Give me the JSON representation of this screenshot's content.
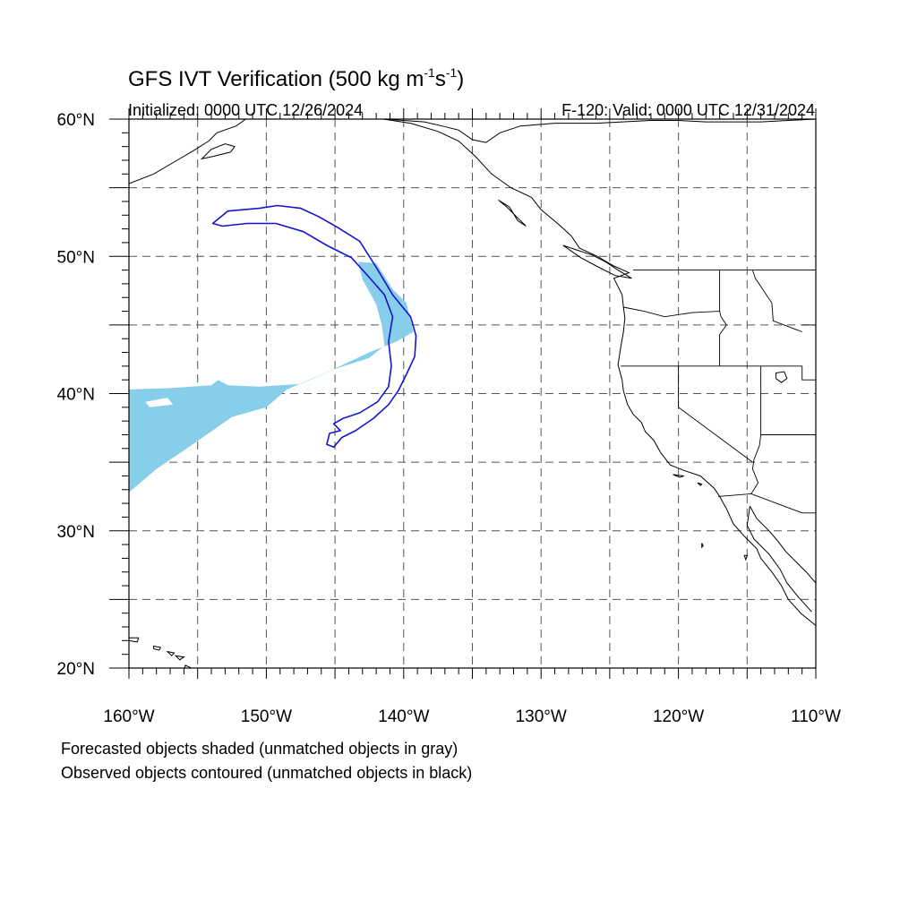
{
  "title": {
    "prefix": "GFS IVT Verification (500 kg m",
    "sup1": "-1",
    "mid": "s",
    "sup2": "-1",
    "suffix": ")"
  },
  "initialized": "Initialized: 0000 UTC 12/26/2024",
  "valid": "F-120: Valid: 0000 UTC 12/31/2024",
  "axes": {
    "lon_range": [
      -160,
      -110
    ],
    "lat_range": [
      20,
      60
    ],
    "x_ticks": [
      {
        "lon": -160,
        "label": "160°W"
      },
      {
        "lon": -150,
        "label": "150°W"
      },
      {
        "lon": -140,
        "label": "140°W"
      },
      {
        "lon": -130,
        "label": "130°W"
      },
      {
        "lon": -120,
        "label": "120°W"
      },
      {
        "lon": -110,
        "label": "110°W"
      }
    ],
    "y_ticks": [
      {
        "lat": 20,
        "label": "20°N"
      },
      {
        "lat": 30,
        "label": "30°N"
      },
      {
        "lat": 40,
        "label": "40°N"
      },
      {
        "lat": 50,
        "label": "50°N"
      },
      {
        "lat": 60,
        "label": "60°N"
      }
    ],
    "grid_lons": [
      -155,
      -150,
      -145,
      -140,
      -135,
      -130,
      -125,
      -120,
      -115
    ],
    "grid_lats": [
      25,
      30,
      35,
      40,
      45,
      50,
      55
    ],
    "grid": true
  },
  "legend_lines": [
    "Forecasted objects shaded (unmatched objects in gray)",
    "Observed objects contoured (unmatched objects in black)"
  ],
  "colors": {
    "forecast_fill": "#87ceeb",
    "observed_contour": "#1414d2",
    "coast": "#000000",
    "grid": "#555555"
  },
  "forecast_object": {
    "name": "Forecasted objects",
    "polygon": [
      [
        -160,
        40.3
      ],
      [
        -157,
        40.4
      ],
      [
        -154,
        40.6
      ],
      [
        -153.5,
        41
      ],
      [
        -152.8,
        40.6
      ],
      [
        -150.5,
        40.5
      ],
      [
        -147.5,
        40.7
      ],
      [
        -145,
        41.8
      ],
      [
        -142.5,
        42.6
      ],
      [
        -141.4,
        43.5
      ],
      [
        -141.6,
        45
      ],
      [
        -142,
        46.5
      ],
      [
        -143,
        48.3
      ],
      [
        -143.3,
        49.6
      ],
      [
        -142,
        49.5
      ],
      [
        -140.8,
        47.6
      ],
      [
        -139.8,
        46.6
      ],
      [
        -139.3,
        44.5
      ],
      [
        -140.5,
        43.8
      ],
      [
        -142.5,
        43
      ],
      [
        -145.5,
        41.6
      ],
      [
        -148.5,
        40.3
      ],
      [
        -150,
        39
      ],
      [
        -152.5,
        38.3
      ],
      [
        -155.5,
        36.2
      ],
      [
        -158,
        34.5
      ],
      [
        -160,
        32.8
      ]
    ],
    "notch": [
      [
        -158.8,
        39.4
      ],
      [
        -157.2,
        39.7
      ],
      [
        -156.8,
        39.2
      ],
      [
        -158.5,
        39.0
      ]
    ]
  },
  "observed_object": {
    "name": "Observed objects",
    "polygon": [
      [
        -153.9,
        52.4
      ],
      [
        -152.8,
        53.3
      ],
      [
        -150.5,
        53.5
      ],
      [
        -149.2,
        53.7
      ],
      [
        -147.5,
        53.5
      ],
      [
        -146.2,
        52.9
      ],
      [
        -144.8,
        52.1
      ],
      [
        -143.2,
        51.1
      ],
      [
        -142,
        49.2
      ],
      [
        -140.8,
        47.2
      ],
      [
        -139.5,
        45.6
      ],
      [
        -139.1,
        44.2
      ],
      [
        -139.2,
        42.7
      ],
      [
        -139.8,
        41.4
      ],
      [
        -140.4,
        40.2
      ],
      [
        -141.1,
        39.2
      ],
      [
        -142.2,
        38.2
      ],
      [
        -143.5,
        37.3
      ],
      [
        -144.5,
        36.8
      ],
      [
        -145.1,
        36.1
      ],
      [
        -145.6,
        36.3
      ],
      [
        -145.4,
        37.1
      ],
      [
        -144.6,
        37.3
      ],
      [
        -145.1,
        37.8
      ],
      [
        -144.4,
        38.2
      ],
      [
        -143.2,
        38.6
      ],
      [
        -141.9,
        39.4
      ],
      [
        -141.1,
        40.5
      ],
      [
        -140.9,
        42
      ],
      [
        -141.1,
        43.8
      ],
      [
        -140.8,
        45.6
      ],
      [
        -141.4,
        47.2
      ],
      [
        -142.8,
        48.8
      ],
      [
        -143.8,
        49.9
      ],
      [
        -145.6,
        50.8
      ],
      [
        -147.3,
        51.8
      ],
      [
        -149.3,
        52.4
      ],
      [
        -151.4,
        52.4
      ],
      [
        -153.2,
        52.2
      ]
    ]
  },
  "coastlines": {
    "north_america": [
      [
        -110,
        60
      ],
      [
        -112,
        59.9
      ],
      [
        -114,
        59.8
      ],
      [
        -116,
        59.8
      ],
      [
        -118,
        59.8
      ],
      [
        -120,
        59.9
      ],
      [
        -122,
        59.9
      ],
      [
        -126,
        59.7
      ],
      [
        -129,
        59.7
      ],
      [
        -131.5,
        59.5
      ],
      [
        -133,
        59
      ],
      [
        -134,
        58.3
      ],
      [
        -135,
        58.5
      ],
      [
        -136,
        59.2
      ],
      [
        -137.2,
        59.5
      ],
      [
        -138.5,
        59.8
      ],
      [
        -140,
        59.9
      ],
      [
        -141.5,
        60
      ]
    ],
    "bc_coast": [
      [
        -141.5,
        60
      ],
      [
        -139.5,
        59.7
      ],
      [
        -137.5,
        59.1
      ],
      [
        -136,
        58.4
      ],
      [
        -134.8,
        57.3
      ],
      [
        -133.6,
        56
      ],
      [
        -132.2,
        55
      ],
      [
        -130.7,
        54.3
      ],
      [
        -130,
        53.4
      ],
      [
        -128.8,
        52.4
      ],
      [
        -127.8,
        51.5
      ],
      [
        -127.2,
        50.6
      ],
      [
        -125.9,
        50
      ],
      [
        -124.7,
        49.3
      ],
      [
        -123.6,
        48.8
      ],
      [
        -124.7,
        48.4
      ],
      [
        -124.1,
        47.2
      ],
      [
        -124,
        46.3
      ],
      [
        -123.9,
        45.5
      ],
      [
        -124,
        44.5
      ],
      [
        -124.2,
        43.4
      ],
      [
        -124.4,
        42.1
      ],
      [
        -124.1,
        41
      ],
      [
        -124,
        40.2
      ],
      [
        -123.7,
        39.2
      ],
      [
        -123.3,
        38.5
      ],
      [
        -122.7,
        37.9
      ],
      [
        -122.4,
        37.2
      ],
      [
        -121.8,
        36.6
      ],
      [
        -121.3,
        35.7
      ],
      [
        -120.6,
        34.8
      ],
      [
        -119.6,
        34.4
      ],
      [
        -118.4,
        34
      ],
      [
        -117.4,
        33.1
      ],
      [
        -117,
        32.5
      ],
      [
        -116.5,
        31.6
      ],
      [
        -116,
        30.5
      ],
      [
        -115.2,
        29.6
      ],
      [
        -114.3,
        28.7
      ],
      [
        -114,
        28
      ],
      [
        -113.2,
        27
      ],
      [
        -112.5,
        26
      ],
      [
        -112,
        25
      ],
      [
        -111.1,
        24
      ],
      [
        -110,
        23.1
      ]
    ],
    "gulf_coast": [
      [
        -114.8,
        31.8
      ],
      [
        -114.3,
        30.9
      ],
      [
        -113.4,
        30
      ],
      [
        -112.8,
        29.3
      ],
      [
        -112.2,
        28.5
      ],
      [
        -111.3,
        27.6
      ],
      [
        -110.6,
        26.9
      ],
      [
        -110,
        26.2
      ]
    ],
    "baja_inner": [
      [
        -114.8,
        31.8
      ],
      [
        -115,
        30.4
      ],
      [
        -114.5,
        29.4
      ],
      [
        -113.4,
        28.3
      ],
      [
        -112.6,
        27.2
      ],
      [
        -112.1,
        26.2
      ],
      [
        -111.3,
        25.2
      ],
      [
        -110.3,
        24.1
      ]
    ],
    "vancouver_island": [
      [
        -128.4,
        50.8
      ],
      [
        -127.5,
        50.5
      ],
      [
        -126.3,
        50.1
      ],
      [
        -125.3,
        49.6
      ],
      [
        -124.4,
        49
      ],
      [
        -123.4,
        48.4
      ],
      [
        -124.6,
        48.6
      ],
      [
        -125.8,
        49.2
      ],
      [
        -127.1,
        49.9
      ],
      [
        -128.4,
        50.8
      ]
    ],
    "haida_gwaii": [
      [
        -133.1,
        54.1
      ],
      [
        -132.3,
        53.6
      ],
      [
        -131.7,
        52.6
      ],
      [
        -131.1,
        52.2
      ],
      [
        -131.8,
        52.9
      ],
      [
        -132.5,
        53.6
      ],
      [
        -133.1,
        54.1
      ]
    ],
    "alaska_arc": [
      [
        -160,
        55.3
      ],
      [
        -158.2,
        56
      ],
      [
        -156.5,
        57
      ],
      [
        -155.3,
        57.7
      ],
      [
        -154.2,
        58.4
      ],
      [
        -153.6,
        59
      ],
      [
        -152.2,
        59.5
      ],
      [
        -151.5,
        60
      ]
    ],
    "kodiak": [
      [
        -154.7,
        57.1
      ],
      [
        -153.8,
        57.3
      ],
      [
        -152.6,
        57.6
      ],
      [
        -152.3,
        58
      ],
      [
        -153,
        58.2
      ],
      [
        -154,
        57.8
      ],
      [
        -154.7,
        57.1
      ]
    ],
    "hawaii": [
      [
        [
          -160.1,
          22.2
        ],
        [
          -159.3,
          22.2
        ],
        [
          -159.4,
          21.9
        ],
        [
          -160,
          22
        ]
      ],
      [
        [
          -158.2,
          21.6
        ],
        [
          -157.7,
          21.5
        ],
        [
          -157.8,
          21.3
        ],
        [
          -158.2,
          21.4
        ]
      ],
      [
        [
          -157.2,
          21.2
        ],
        [
          -156.7,
          21.1
        ],
        [
          -156.9,
          20.9
        ]
      ],
      [
        [
          -156.6,
          20.9
        ],
        [
          -156,
          20.8
        ],
        [
          -156.3,
          20.6
        ]
      ],
      [
        [
          -155.9,
          20.2
        ],
        [
          -155,
          19.8
        ],
        [
          -155.6,
          19.1
        ],
        [
          -156,
          19.6
        ]
      ]
    ],
    "small_islands": [
      [
        [
          -118.6,
          33.5
        ],
        [
          -118.3,
          33.4
        ],
        [
          -118.4,
          33.3
        ]
      ],
      [
        [
          -120.4,
          34.1
        ],
        [
          -119.6,
          34.0
        ],
        [
          -119.9,
          33.9
        ]
      ],
      [
        [
          -118.3,
          29.1
        ],
        [
          -118.2,
          28.9
        ],
        [
          -118.3,
          28.8
        ]
      ],
      [
        [
          -115.2,
          28.2
        ],
        [
          -115.0,
          28.2
        ],
        [
          -115.1,
          27.9
        ]
      ]
    ],
    "salt_lake": [
      [
        -112.9,
        41.5
      ],
      [
        -112.3,
        41.6
      ],
      [
        -112.1,
        41.1
      ],
      [
        -112.5,
        40.8
      ],
      [
        -112.9,
        41.1
      ]
    ]
  },
  "borders": {
    "us_canada": [
      [
        -123.3,
        49
      ],
      [
        -110,
        49
      ]
    ],
    "wa_or": [
      [
        -124,
        46.3
      ],
      [
        -122.5,
        46
      ],
      [
        -121,
        45.6
      ],
      [
        -119,
        45.9
      ],
      [
        -117,
        46
      ]
    ],
    "wa_id": [
      [
        -117,
        49
      ],
      [
        -117,
        46
      ],
      [
        -116.9,
        45.6
      ]
    ],
    "or_id": [
      [
        -116.9,
        45.6
      ],
      [
        -116.5,
        45
      ],
      [
        -117,
        44.3
      ],
      [
        -117,
        42
      ]
    ],
    "or_ca_nv": [
      [
        -124.2,
        42
      ],
      [
        -111,
        42
      ]
    ],
    "ca_nv": [
      [
        -120,
        42
      ],
      [
        -120,
        39
      ],
      [
        -114.6,
        35
      ]
    ],
    "nv_ut": [
      [
        -114,
        42
      ],
      [
        -114,
        37
      ],
      [
        -114.1,
        36.2
      ]
    ],
    "ut_east": [
      [
        -111,
        42
      ],
      [
        -111,
        41
      ],
      [
        -109,
        41
      ]
    ],
    "idaho_east": [
      [
        -114.6,
        49
      ],
      [
        -114.4,
        48.4
      ],
      [
        -113.2,
        46.6
      ],
      [
        -113.1,
        45.3
      ],
      [
        -111,
        44.5
      ]
    ],
    "wyoming": [
      [
        -111,
        45
      ],
      [
        -110,
        45
      ]
    ],
    "az": [
      [
        -114.1,
        36.2
      ],
      [
        -114.5,
        35.2
      ],
      [
        -114.6,
        34.5
      ],
      [
        -114.2,
        33.5
      ],
      [
        -114.7,
        32.7
      ]
    ],
    "us_mexico": [
      [
        -117.1,
        32.5
      ],
      [
        -114.7,
        32.7
      ],
      [
        -111,
        31.3
      ],
      [
        -110,
        31.3
      ]
    ],
    "ut_az": [
      [
        -114,
        37
      ],
      [
        -110,
        37
      ]
    ]
  }
}
